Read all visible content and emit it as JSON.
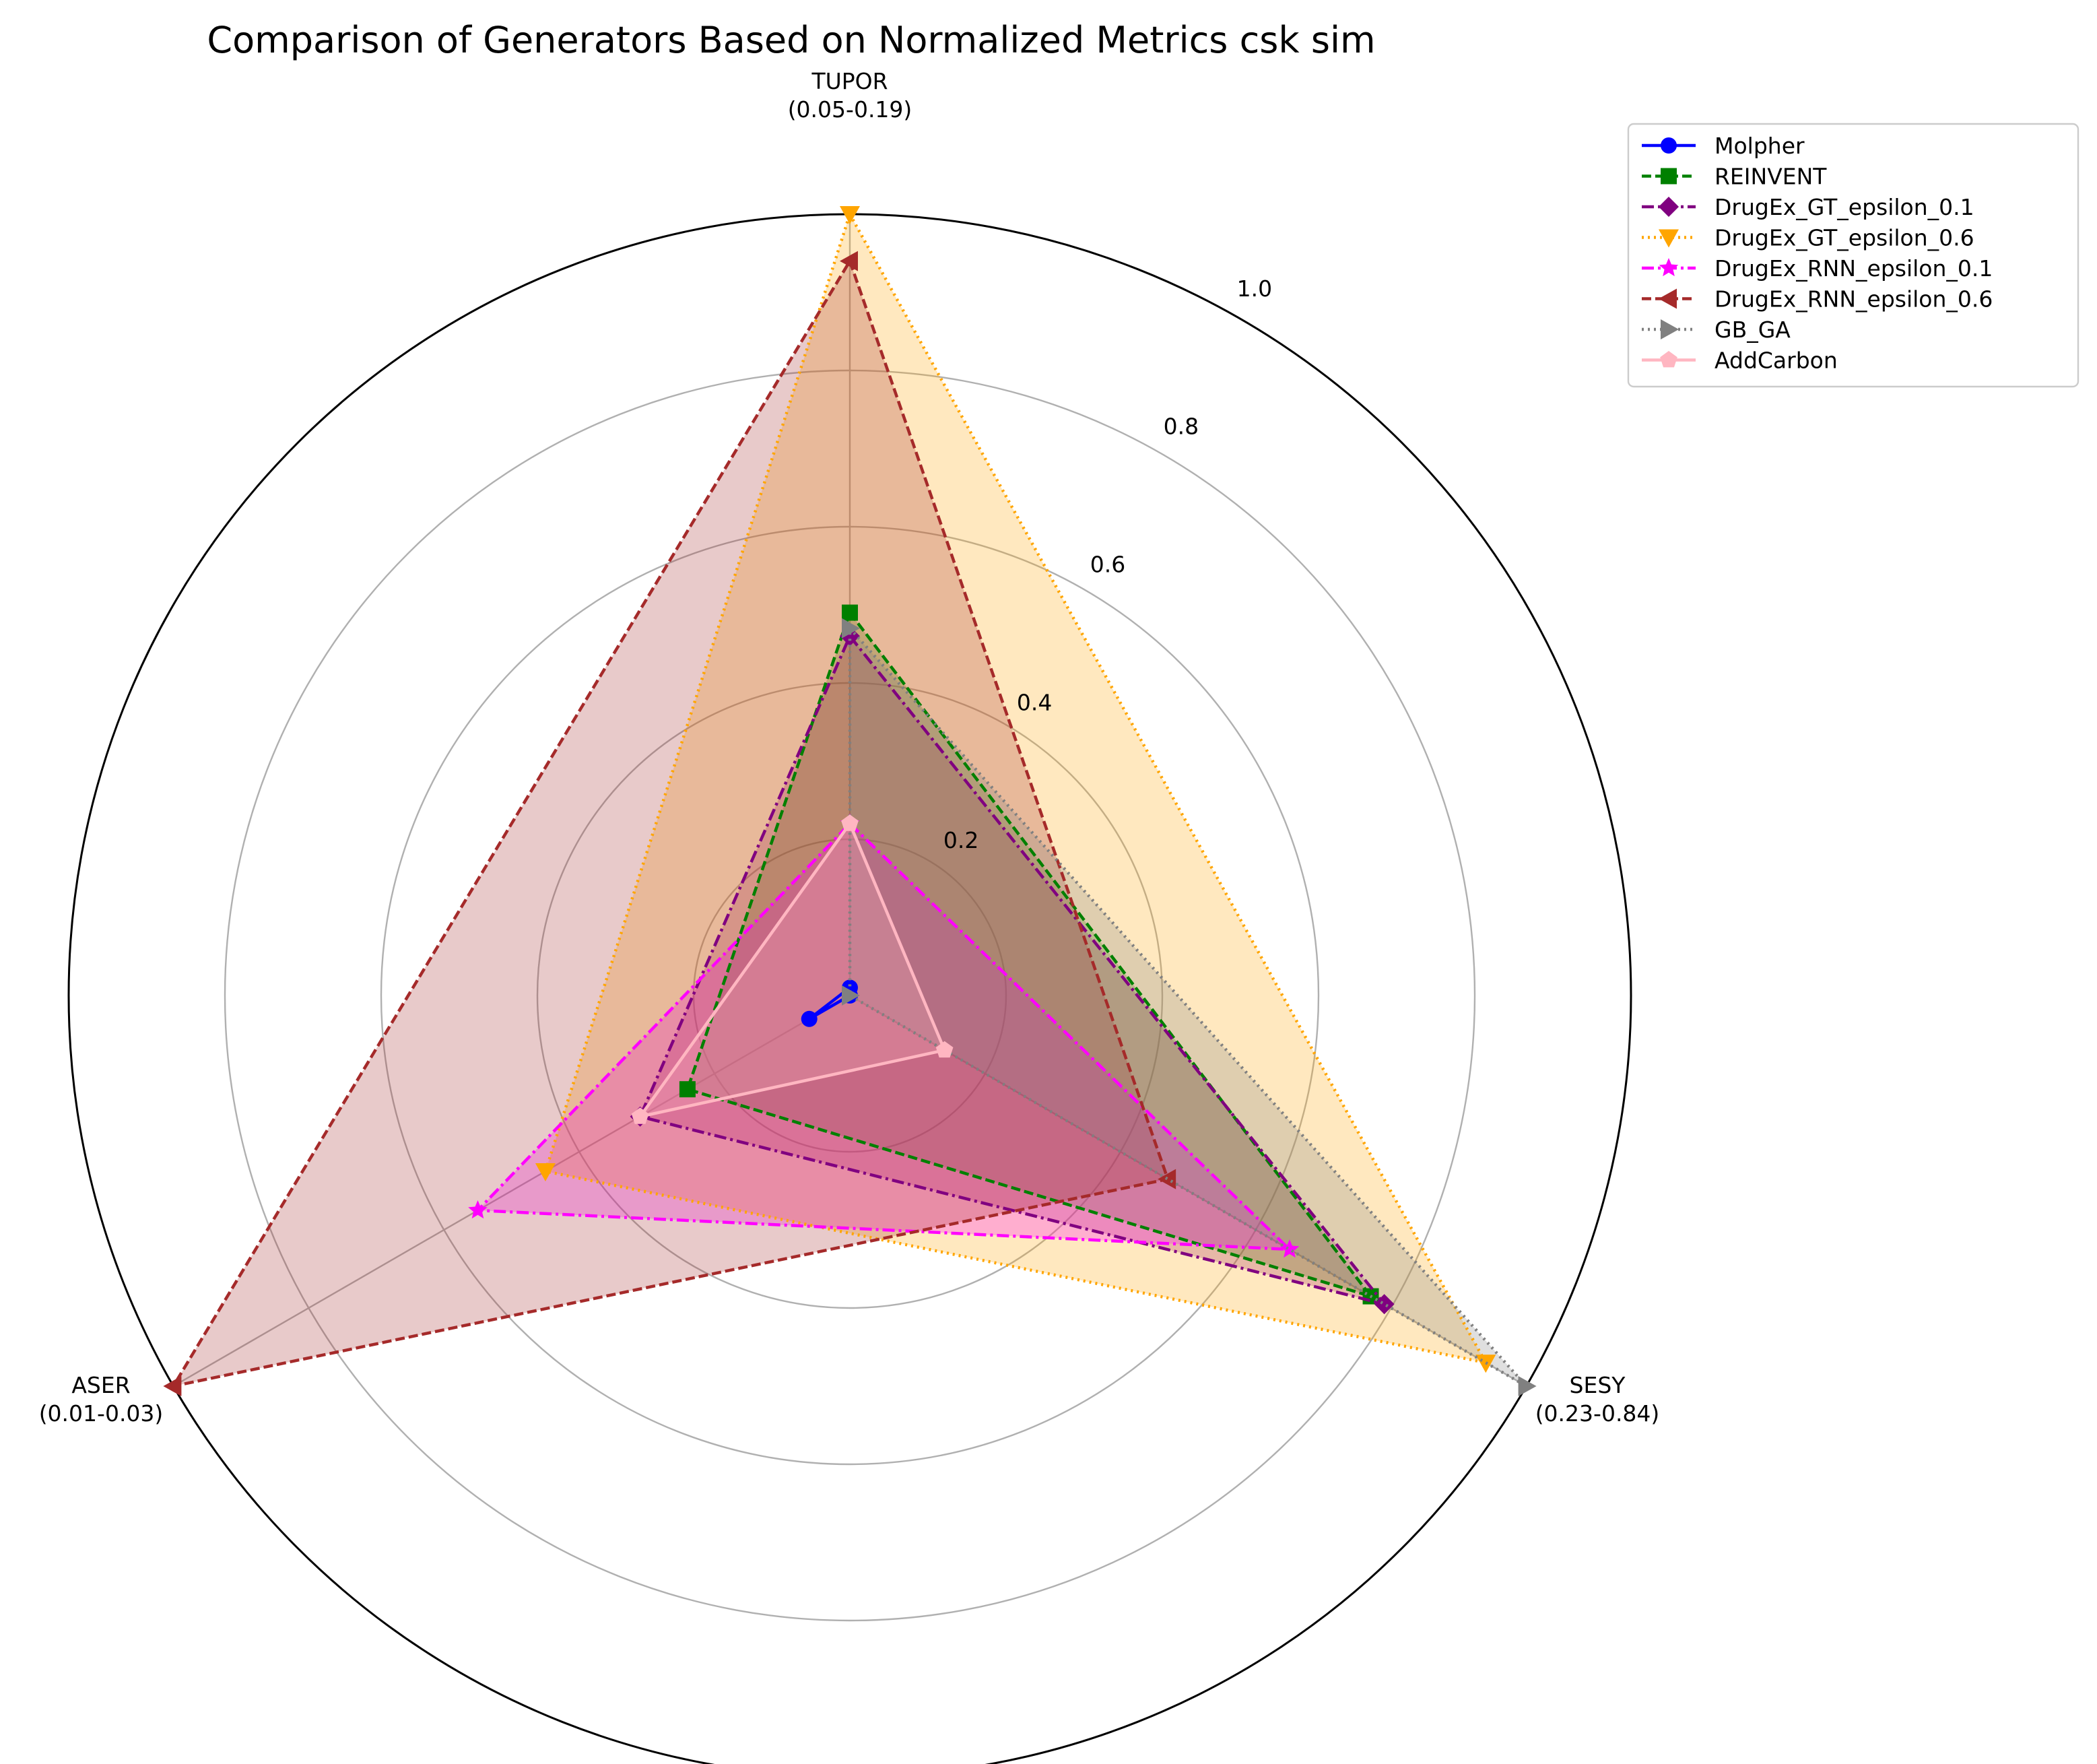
{
  "chart_data": {
    "type": "radar",
    "title": "Comparison of Generators Based on Normalized Metrics csk sim",
    "axes": [
      {
        "name": "TUPOR",
        "range_label": "(0.05-0.19)"
      },
      {
        "name": "SESY",
        "range_label": "(0.23-0.84)"
      },
      {
        "name": "ASER",
        "range_label": "(0.01-0.03)"
      }
    ],
    "r_ticks": [
      "0.2",
      "0.4",
      "0.6",
      "0.8",
      "1.0"
    ],
    "r_tick_values": [
      0.2,
      0.4,
      0.6,
      0.8,
      1.0
    ],
    "rlim": [
      0,
      1
    ],
    "legend_position": "upper-right-outside",
    "series": [
      {
        "name": "Molpher",
        "values": [
          0.01,
          0.0,
          0.06
        ],
        "color": "#0000ff",
        "dash": "solid",
        "marker": "circle",
        "fill": false
      },
      {
        "name": "REINVENT",
        "values": [
          0.49,
          0.77,
          0.24
        ],
        "color": "#008000",
        "dash": "dashed",
        "marker": "square",
        "fill": true
      },
      {
        "name": "DrugEx_GT_epsilon_0.1",
        "values": [
          0.46,
          0.79,
          0.31
        ],
        "color": "#800080",
        "dash": "dashdot",
        "marker": "diamond",
        "fill": true
      },
      {
        "name": "DrugEx_GT_epsilon_0.6",
        "values": [
          1.0,
          0.94,
          0.45
        ],
        "color": "#ffa500",
        "dash": "dotted",
        "marker": "triangle-down",
        "fill": true
      },
      {
        "name": "DrugEx_RNN_epsilon_0.1",
        "values": [
          0.22,
          0.65,
          0.55
        ],
        "color": "#ff00ff",
        "dash": "dashdot",
        "marker": "star",
        "fill": true
      },
      {
        "name": "DrugEx_RNN_epsilon_0.6",
        "values": [
          0.94,
          0.47,
          1.0
        ],
        "color": "#a52a2a",
        "dash": "dashed",
        "marker": "triangle-left",
        "fill": true
      },
      {
        "name": "GB_GA",
        "values": [
          0.47,
          1.0,
          0.0
        ],
        "color": "#808080",
        "dash": "dotted",
        "marker": "triangle-right",
        "fill": true
      },
      {
        "name": "AddCarbon",
        "values": [
          0.22,
          0.14,
          0.31
        ],
        "color": "#ffb6c1",
        "dash": "solid",
        "marker": "pentagon",
        "fill": true
      }
    ]
  }
}
